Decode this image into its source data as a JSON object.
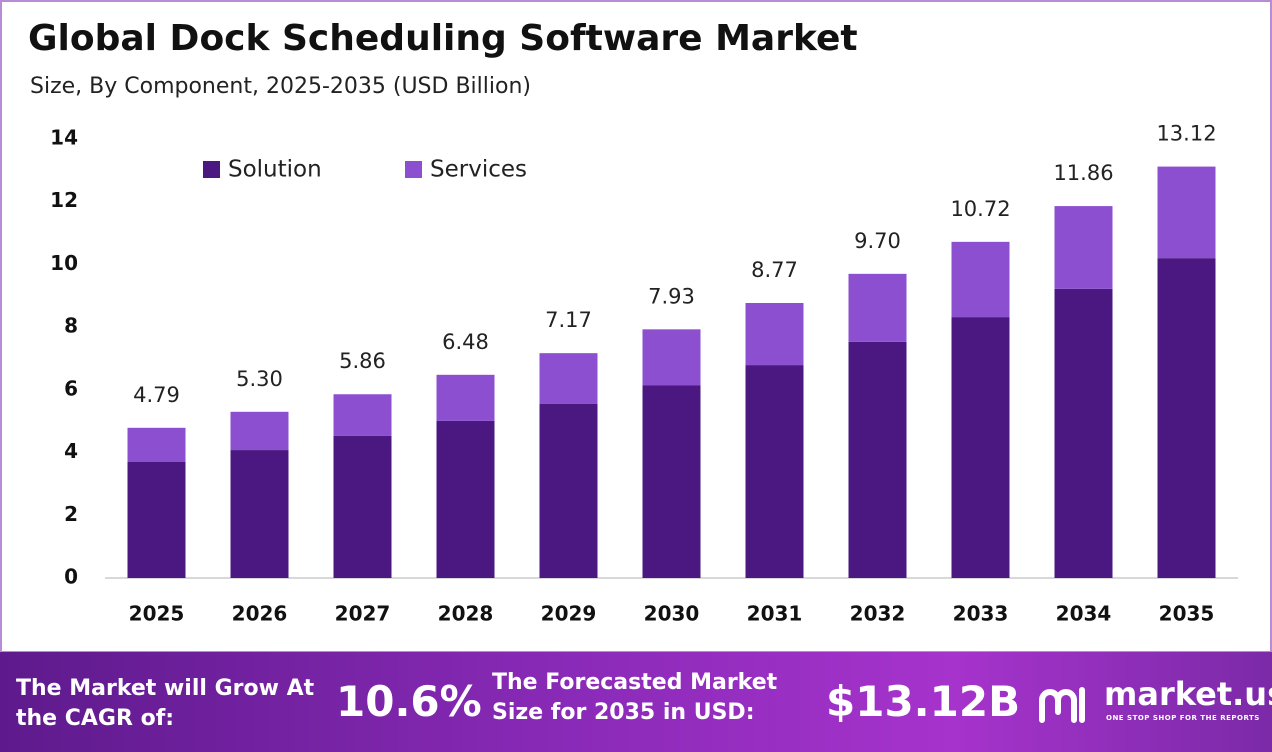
{
  "chart_data": {
    "type": "stacked-bar",
    "title": "Global Dock Scheduling Software Market",
    "subtitle": "Size, By Component, 2025-2035 (USD Billion)",
    "categories": [
      "2025",
      "2026",
      "2027",
      "2028",
      "2029",
      "2030",
      "2031",
      "2032",
      "2033",
      "2034",
      "2035"
    ],
    "series": [
      {
        "name": "Solution",
        "color": "#4a1880",
        "values": [
          3.7,
          4.08,
          4.53,
          5.01,
          5.55,
          6.15,
          6.79,
          7.53,
          8.32,
          9.22,
          10.2
        ]
      },
      {
        "name": "Services",
        "color": "#8b4fcf",
        "values": [
          1.09,
          1.22,
          1.33,
          1.47,
          1.62,
          1.78,
          1.98,
          2.17,
          2.4,
          2.64,
          2.92
        ]
      }
    ],
    "total_labels": [
      "4.79",
      "5.30",
      "5.86",
      "6.48",
      "7.17",
      "7.93",
      "8.77",
      "9.70",
      "10.72",
      "11.86",
      "13.12"
    ],
    "ylim": [
      0,
      14
    ],
    "yticks": [
      0,
      2,
      4,
      6,
      8,
      10,
      12,
      14
    ],
    "grid": false,
    "legend": "top-left"
  },
  "footer": {
    "cagr_text": "The Market will Grow At the CAGR of:",
    "cagr_value": "10.6%",
    "forecast_text": "The Forecasted Market Size for 2035 in USD:",
    "forecast_value": "$13.12B",
    "brand": "market.us",
    "tagline": "ONE STOP SHOP FOR THE REPORTS"
  }
}
